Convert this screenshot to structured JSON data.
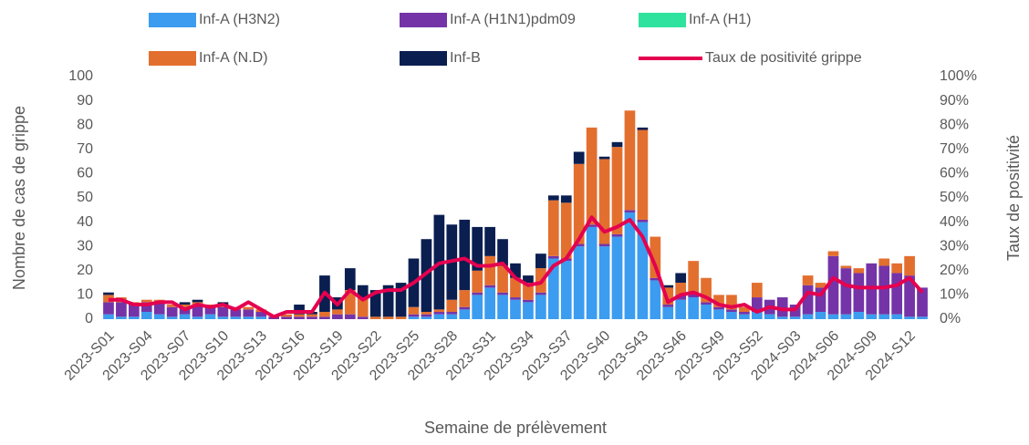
{
  "chart_data": {
    "type": "bar",
    "x_label": "Semaine de prélèvement",
    "y_label": "Nombre de cas de grippe",
    "y2_label": "Taux de positivité",
    "stacked": true,
    "categories": [
      "2023-S01",
      null,
      null,
      "2023-S04",
      null,
      null,
      "2023-S07",
      null,
      null,
      "2023-S10",
      null,
      null,
      "2023-S13",
      null,
      null,
      "2023-S16",
      null,
      null,
      "2023-S19",
      null,
      null,
      "2023-S22",
      null,
      null,
      "2023-S25",
      null,
      null,
      "2023-S28",
      null,
      null,
      "2023-S31",
      null,
      null,
      "2023-S34",
      null,
      null,
      "2023-S37",
      null,
      null,
      "2023-S40",
      null,
      null,
      "2023-S43",
      null,
      null,
      "2023-S46",
      null,
      null,
      "2023-S49",
      null,
      null,
      "2023-S52",
      null,
      null,
      "2024-S03",
      null,
      null,
      "2024-S06",
      null,
      null,
      "2024-S09",
      null,
      null,
      "2024-S12",
      null
    ],
    "series": [
      {
        "name": "Inf-A (H3N2)",
        "color": "#3b9cf0",
        "values": [
          2,
          1,
          1,
          3,
          2,
          1,
          2,
          1,
          2,
          1,
          1,
          1,
          1,
          0,
          0,
          0,
          0,
          0,
          0,
          0,
          0,
          0,
          0,
          0,
          1,
          1,
          2,
          2,
          4,
          10,
          13,
          10,
          8,
          7,
          10,
          25,
          24,
          30,
          38,
          30,
          34,
          44,
          40,
          16,
          5,
          8,
          9,
          6,
          4,
          3,
          2,
          3,
          2,
          1,
          1,
          2,
          3,
          2,
          2,
          3,
          2,
          2,
          2,
          1,
          1
        ]
      },
      {
        "name": "Inf-A  (H1N1)pdm09",
        "color": "#7434a8",
        "values": [
          5,
          6,
          5,
          4,
          5,
          4,
          3,
          5,
          3,
          4,
          3,
          3,
          2,
          1,
          1,
          1,
          1,
          1,
          2,
          2,
          1,
          0,
          0,
          0,
          1,
          1,
          1,
          1,
          1,
          1,
          1,
          1,
          1,
          1,
          1,
          1,
          1,
          1,
          1,
          1,
          1,
          1,
          1,
          1,
          1,
          2,
          2,
          1,
          1,
          1,
          1,
          6,
          6,
          8,
          5,
          12,
          10,
          24,
          19,
          16,
          21,
          20,
          17,
          17,
          12
        ]
      },
      {
        "name": "Inf-A (H1)",
        "color": "#2fe39e",
        "values": [
          0,
          0,
          0,
          0,
          0,
          0,
          0,
          0,
          0,
          0,
          0,
          0,
          0,
          0,
          0,
          0,
          0,
          0,
          0,
          0,
          0,
          0,
          0,
          0,
          0,
          0,
          0,
          0,
          0,
          0,
          0,
          0,
          0,
          0,
          0,
          0,
          0,
          0,
          0,
          0,
          0,
          0,
          0,
          0,
          0,
          0,
          0,
          0,
          0,
          0,
          0,
          0,
          0,
          0,
          0,
          0,
          0,
          0,
          0,
          0,
          0,
          0,
          0,
          0,
          0
        ]
      },
      {
        "name": "Inf-A (N.D)",
        "color": "#e36f2f",
        "values": [
          3,
          2,
          1,
          1,
          1,
          1,
          1,
          1,
          1,
          1,
          1,
          1,
          1,
          0,
          1,
          1,
          1,
          2,
          2,
          10,
          8,
          1,
          1,
          1,
          3,
          1,
          1,
          5,
          7,
          9,
          12,
          11,
          8,
          7,
          10,
          23,
          23,
          33,
          40,
          35,
          36,
          41,
          37,
          17,
          7,
          5,
          13,
          10,
          5,
          6,
          2,
          6,
          0,
          0,
          0,
          4,
          2,
          2,
          1,
          2,
          0,
          3,
          4,
          8,
          0
        ]
      },
      {
        "name": "Inf-B",
        "color": "#0a1e50",
        "values": [
          1,
          0,
          0,
          0,
          0,
          0,
          1,
          1,
          0,
          1,
          0,
          0,
          0,
          0,
          0,
          4,
          1,
          15,
          5,
          9,
          5,
          11,
          13,
          14,
          20,
          30,
          39,
          31,
          29,
          18,
          12,
          11,
          6,
          3,
          6,
          2,
          3,
          5,
          0,
          1,
          2,
          0,
          1,
          0,
          1,
          4,
          0,
          0,
          0,
          0,
          0,
          0,
          0,
          0,
          0,
          0,
          0,
          0,
          0,
          0,
          0,
          0,
          0,
          0,
          0
        ]
      },
      {
        "name": "Taux de positivité grippe",
        "color": "#e5004f",
        "type": "line",
        "axis": "y2",
        "values": [
          8,
          8,
          6,
          6,
          7,
          7,
          4,
          6,
          5,
          6,
          4,
          7,
          4,
          1,
          3,
          3,
          3,
          11,
          6,
          12,
          8,
          11,
          12,
          12,
          15,
          19,
          23,
          24,
          25,
          22,
          22,
          23,
          17,
          14,
          15,
          22,
          25,
          33,
          42,
          36,
          38,
          41,
          34,
          22,
          7,
          10,
          11,
          9,
          6,
          5,
          6,
          3,
          5,
          4,
          4,
          11,
          10,
          17,
          14,
          13,
          13,
          13,
          14,
          17,
          11
        ]
      }
    ],
    "ylim": [
      0,
      100
    ],
    "yticks": [
      0,
      10,
      20,
      30,
      40,
      50,
      60,
      70,
      80,
      90,
      100
    ],
    "y2lim": [
      0,
      100
    ],
    "y2ticks": [
      {
        "value": 0,
        "label": "0%"
      },
      {
        "value": 10,
        "label": "10%"
      },
      {
        "value": 20,
        "label": "20%"
      },
      {
        "value": 30,
        "label": "30%"
      },
      {
        "value": 40,
        "label": "40%"
      },
      {
        "value": 50,
        "label": "50%"
      },
      {
        "value": 60,
        "label": "60%"
      },
      {
        "value": 70,
        "label": "70%"
      },
      {
        "value": 80,
        "label": "80%"
      },
      {
        "value": 90,
        "label": "90%"
      },
      {
        "value": 100,
        "label": "100%"
      }
    ],
    "legend": "top"
  }
}
